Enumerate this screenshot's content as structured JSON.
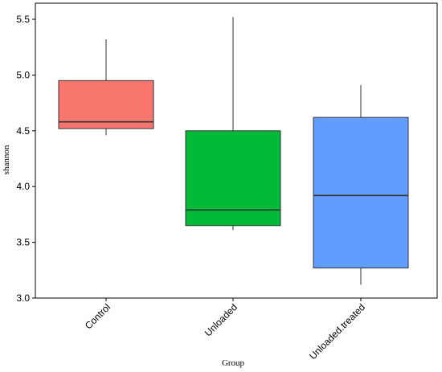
{
  "chart_data": {
    "type": "boxplot",
    "xlabel": "Group",
    "ylabel": "shannon",
    "ylim": [
      3.0,
      5.55
    ],
    "yticks": [
      3.0,
      3.5,
      4.0,
      4.5,
      5.0,
      5.5
    ],
    "ytick_labels": [
      "3.0",
      "3.5",
      "4.0",
      "4.5",
      "5.0",
      "5.5"
    ],
    "grid": false,
    "categories": [
      "Control",
      "Unloaded",
      "Unloaded.treated"
    ],
    "boxes": [
      {
        "category": "Control",
        "whisker_low": 4.46,
        "q1": 4.52,
        "median": 4.58,
        "q3": 4.95,
        "whisker_high": 5.32,
        "color": "#F8766D"
      },
      {
        "category": "Unloaded",
        "whisker_low": 3.61,
        "q1": 3.65,
        "median": 3.79,
        "q3": 4.5,
        "whisker_high": 5.52,
        "color": "#00BA38"
      },
      {
        "category": "Unloaded.treated",
        "whisker_low": 3.12,
        "q1": 3.27,
        "median": 3.92,
        "q3": 4.62,
        "whisker_high": 4.91,
        "color": "#619CFF"
      }
    ]
  }
}
